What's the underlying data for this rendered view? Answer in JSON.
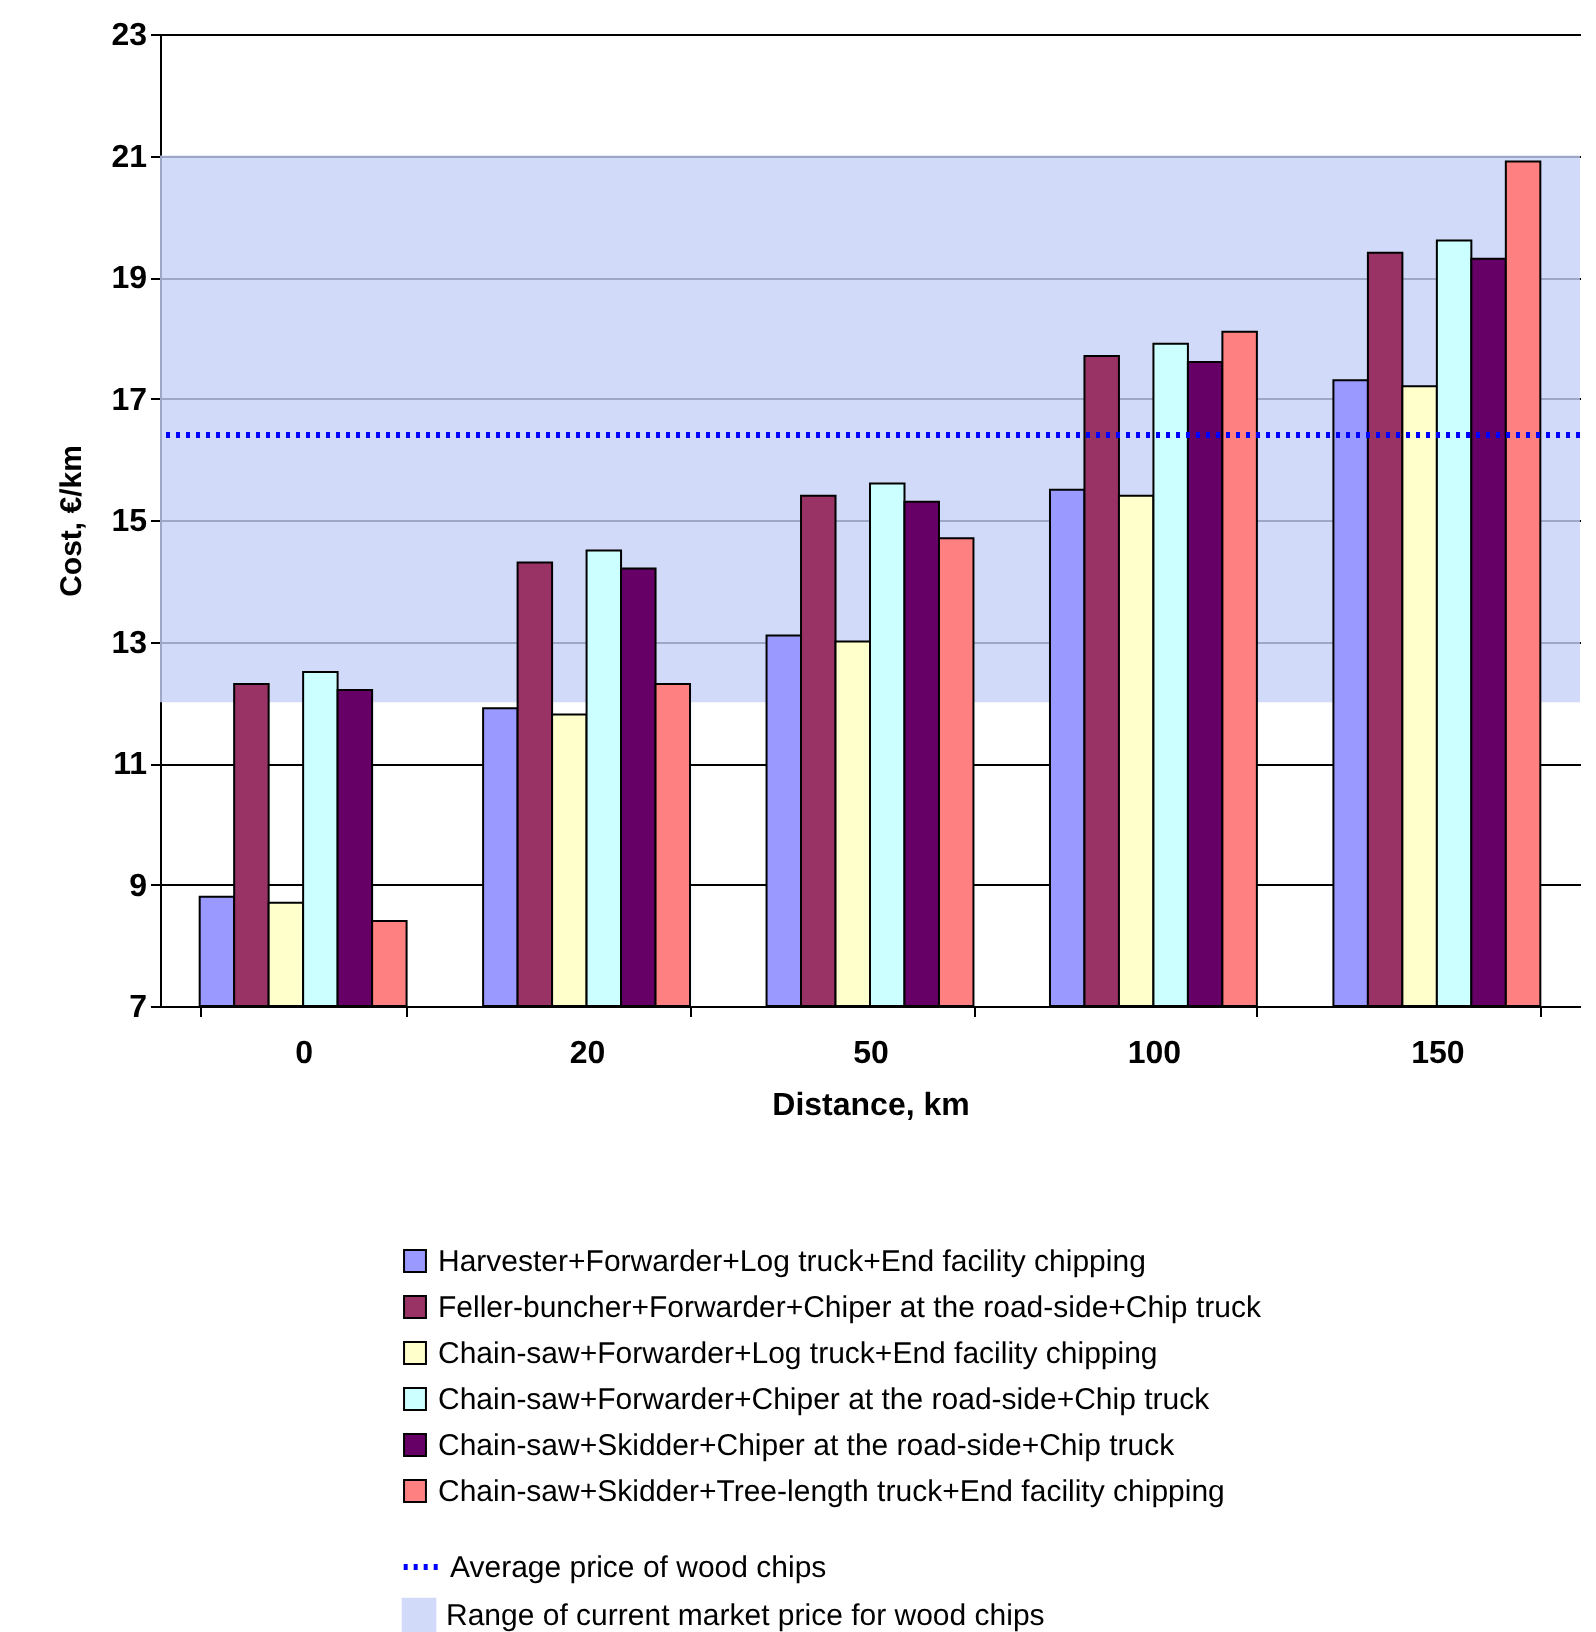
{
  "chart_data": {
    "type": "bar",
    "xlabel": "Distance, km",
    "ylabel": "Cost, €/km",
    "categories": [
      "0",
      "20",
      "50",
      "100",
      "150"
    ],
    "series": [
      {
        "name": "Harvester+Forwarder+Log truck+End facility chipping",
        "color": "#9999ff",
        "values": [
          8.8,
          11.9,
          13.1,
          15.5,
          17.3
        ]
      },
      {
        "name": "Feller-buncher+Forwarder+Chiper at the road-side+Chip truck",
        "color": "#993366",
        "values": [
          12.3,
          14.3,
          15.4,
          17.7,
          19.4
        ]
      },
      {
        "name": "Chain-saw+Forwarder+Log truck+End facility chipping",
        "color": "#ffffcc",
        "values": [
          8.7,
          11.8,
          13.0,
          15.4,
          17.2
        ]
      },
      {
        "name": "Chain-saw+Forwarder+Chiper at the road-side+Chip truck",
        "color": "#ccffff",
        "values": [
          12.5,
          14.5,
          15.6,
          17.9,
          19.6
        ]
      },
      {
        "name": "Chain-saw+Skidder+Chiper at the road-side+Chip truck",
        "color": "#660066",
        "values": [
          12.2,
          14.2,
          15.3,
          17.6,
          19.3
        ]
      },
      {
        "name": "Chain-saw+Skidder+Tree-length truck+End facility chipping",
        "color": "#ff8080",
        "values": [
          8.4,
          12.3,
          14.7,
          18.1,
          20.9
        ]
      }
    ],
    "ylim": [
      7,
      23
    ],
    "yticks": [
      7,
      9,
      11,
      13,
      15,
      17,
      19,
      21,
      23
    ],
    "grid": "y",
    "legend": "bottom",
    "ref_lines": [
      {
        "axis": "y",
        "value": 16.4,
        "label": "Average price of wood chips",
        "color": "#0000ff",
        "line_style": "dotted"
      }
    ],
    "bands": [
      {
        "axis": "y",
        "from": 12,
        "to": 21,
        "label": "Range of current market price for wood chips",
        "color": "#c6d2f7"
      }
    ]
  }
}
